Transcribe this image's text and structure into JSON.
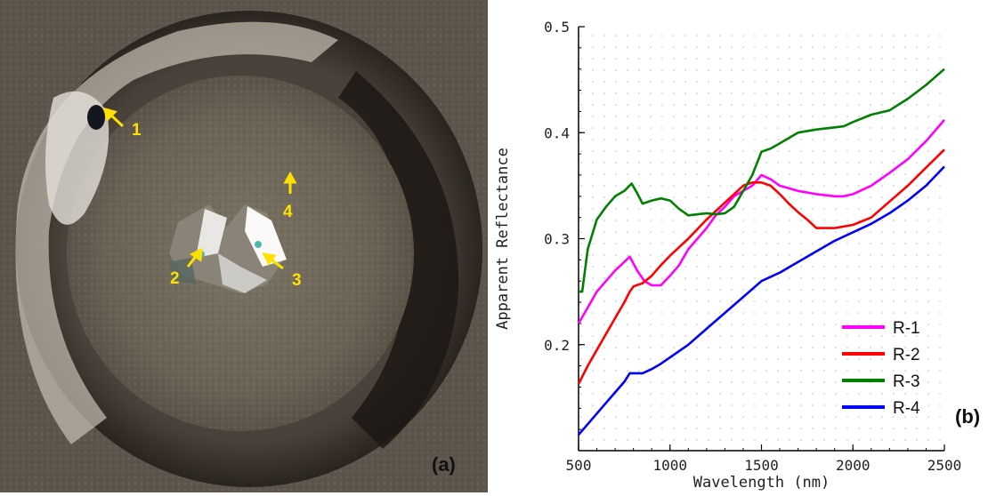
{
  "panel_a": {
    "label": "(a)",
    "markers": [
      {
        "label": "1"
      },
      {
        "label": "2"
      },
      {
        "label": "3"
      },
      {
        "label": "4"
      }
    ]
  },
  "panel_b_label": "(b)",
  "chart_data": {
    "type": "line",
    "title": "",
    "xlabel": "Wavelength (nm)",
    "ylabel": "Apparent Reflectance",
    "xlim": [
      500,
      2500
    ],
    "ylim": [
      0.1,
      0.5
    ],
    "xticks": [
      500,
      1000,
      1500,
      2000,
      2500
    ],
    "yticks": [
      0.2,
      0.3,
      0.4,
      0.5
    ],
    "grid": true,
    "legend_position": "bottom-right",
    "series": [
      {
        "name": "R-1",
        "color": "#ff00ff",
        "x": [
          500,
          550,
          600,
          650,
          700,
          750,
          780,
          820,
          860,
          900,
          950,
          1000,
          1050,
          1100,
          1150,
          1200,
          1250,
          1300,
          1350,
          1400,
          1450,
          1500,
          1550,
          1600,
          1700,
          1800,
          1900,
          1950,
          2000,
          2100,
          2200,
          2300,
          2400,
          2500
        ],
        "y": [
          0.22,
          0.235,
          0.25,
          0.26,
          0.27,
          0.278,
          0.283,
          0.27,
          0.26,
          0.256,
          0.256,
          0.265,
          0.275,
          0.29,
          0.3,
          0.31,
          0.322,
          0.33,
          0.34,
          0.345,
          0.35,
          0.36,
          0.356,
          0.35,
          0.345,
          0.342,
          0.34,
          0.34,
          0.342,
          0.35,
          0.362,
          0.375,
          0.392,
          0.412
        ]
      },
      {
        "name": "R-2",
        "color": "#ff0000",
        "x": [
          500,
          550,
          600,
          650,
          700,
          750,
          780,
          800,
          850,
          900,
          950,
          1000,
          1100,
          1200,
          1300,
          1350,
          1400,
          1450,
          1500,
          1550,
          1600,
          1650,
          1700,
          1750,
          1800,
          1900,
          2000,
          2100,
          2200,
          2300,
          2400,
          2500
        ],
        "y": [
          0.163,
          0.18,
          0.195,
          0.21,
          0.225,
          0.24,
          0.25,
          0.255,
          0.258,
          0.265,
          0.275,
          0.284,
          0.3,
          0.318,
          0.334,
          0.342,
          0.35,
          0.353,
          0.353,
          0.35,
          0.342,
          0.333,
          0.325,
          0.318,
          0.31,
          0.31,
          0.313,
          0.32,
          0.335,
          0.35,
          0.367,
          0.384
        ]
      },
      {
        "name": "R-3",
        "color": "#008000",
        "x": [
          500,
          520,
          550,
          600,
          650,
          700,
          750,
          790,
          820,
          850,
          900,
          950,
          1000,
          1050,
          1100,
          1150,
          1200,
          1250,
          1300,
          1350,
          1400,
          1450,
          1500,
          1550,
          1600,
          1700,
          1800,
          1900,
          1950,
          2000,
          2100,
          2200,
          2300,
          2400,
          2500
        ],
        "y": [
          0.25,
          0.25,
          0.29,
          0.318,
          0.33,
          0.34,
          0.345,
          0.352,
          0.343,
          0.333,
          0.336,
          0.338,
          0.336,
          0.328,
          0.322,
          0.323,
          0.324,
          0.323,
          0.324,
          0.33,
          0.345,
          0.36,
          0.382,
          0.385,
          0.39,
          0.4,
          0.403,
          0.405,
          0.406,
          0.41,
          0.417,
          0.421,
          0.432,
          0.445,
          0.46
        ]
      },
      {
        "name": "R-4",
        "color": "#0000ff",
        "x": [
          500,
          550,
          600,
          650,
          700,
          750,
          780,
          800,
          850,
          900,
          950,
          1000,
          1100,
          1200,
          1300,
          1400,
          1500,
          1600,
          1700,
          1800,
          1900,
          2000,
          2100,
          2200,
          2300,
          2400,
          2500
        ],
        "y": [
          0.115,
          0.125,
          0.135,
          0.145,
          0.155,
          0.165,
          0.173,
          0.173,
          0.173,
          0.177,
          0.182,
          0.188,
          0.2,
          0.215,
          0.23,
          0.245,
          0.26,
          0.268,
          0.278,
          0.288,
          0.298,
          0.306,
          0.314,
          0.324,
          0.336,
          0.35,
          0.368
        ]
      }
    ]
  }
}
